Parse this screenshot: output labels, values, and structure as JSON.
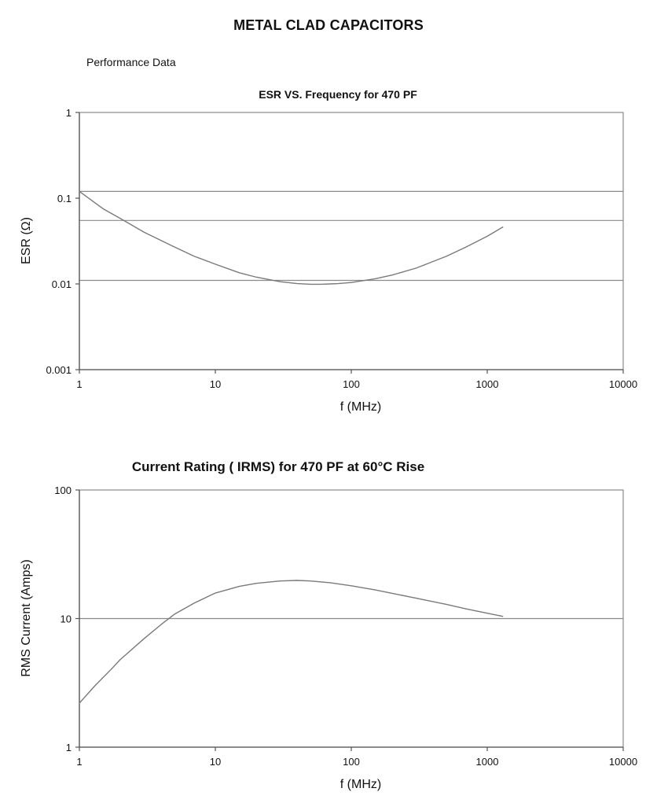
{
  "page": {
    "title": "METAL CLAD CAPACITORS",
    "subtitle": "Performance Data"
  },
  "chart_data": [
    {
      "type": "line",
      "title": "ESR VS. Frequency for 470 PF",
      "xlabel": "f (MHz)",
      "ylabel": "ESR (Ω)",
      "xscale": "log",
      "yscale": "log",
      "xlim": [
        1,
        10000
      ],
      "ylim": [
        0.001,
        1
      ],
      "xticks": [
        "1",
        "10",
        "100",
        "1000",
        "10000"
      ],
      "yticks": [
        "0.001",
        "0.01",
        "0.1",
        "1"
      ],
      "reference_lines_y": [
        0.12,
        0.055,
        0.011
      ],
      "series": [
        {
          "x": [
            1,
            1.5,
            2,
            3,
            5,
            7,
            10,
            15,
            20,
            30,
            40,
            50,
            60,
            70,
            80,
            100,
            150,
            200,
            300,
            500,
            700,
            1000,
            1300
          ],
          "y": [
            0.12,
            0.075,
            0.058,
            0.04,
            0.027,
            0.021,
            0.017,
            0.0135,
            0.012,
            0.0106,
            0.0101,
            0.0099,
            0.0099,
            0.01,
            0.0101,
            0.0104,
            0.0115,
            0.0127,
            0.0153,
            0.021,
            0.027,
            0.036,
            0.046
          ]
        }
      ]
    },
    {
      "type": "line",
      "title": "Current Rating ( IRMS) for 470 PF at 60°C Rise",
      "xlabel": "f (MHz)",
      "ylabel": "RMS Current (Amps)",
      "xscale": "log",
      "yscale": "log",
      "xlim": [
        1,
        10000
      ],
      "ylim": [
        1,
        100
      ],
      "xticks": [
        "1",
        "10",
        "100",
        "1000",
        "10000"
      ],
      "yticks": [
        "1",
        "10",
        "100"
      ],
      "reference_lines_y": [
        10
      ],
      "series": [
        {
          "x": [
            1,
            1.3,
            1.7,
            2,
            3,
            4,
            5,
            7,
            10,
            15,
            20,
            30,
            40,
            50,
            70,
            100,
            150,
            200,
            300,
            500,
            700,
            1000,
            1300
          ],
          "y": [
            2.2,
            3.0,
            4.0,
            4.8,
            7.0,
            9.0,
            10.8,
            13.2,
            15.8,
            17.8,
            18.8,
            19.6,
            19.8,
            19.6,
            19.0,
            18.0,
            16.7,
            15.7,
            14.4,
            12.9,
            11.9,
            11.0,
            10.4
          ]
        }
      ]
    }
  ]
}
